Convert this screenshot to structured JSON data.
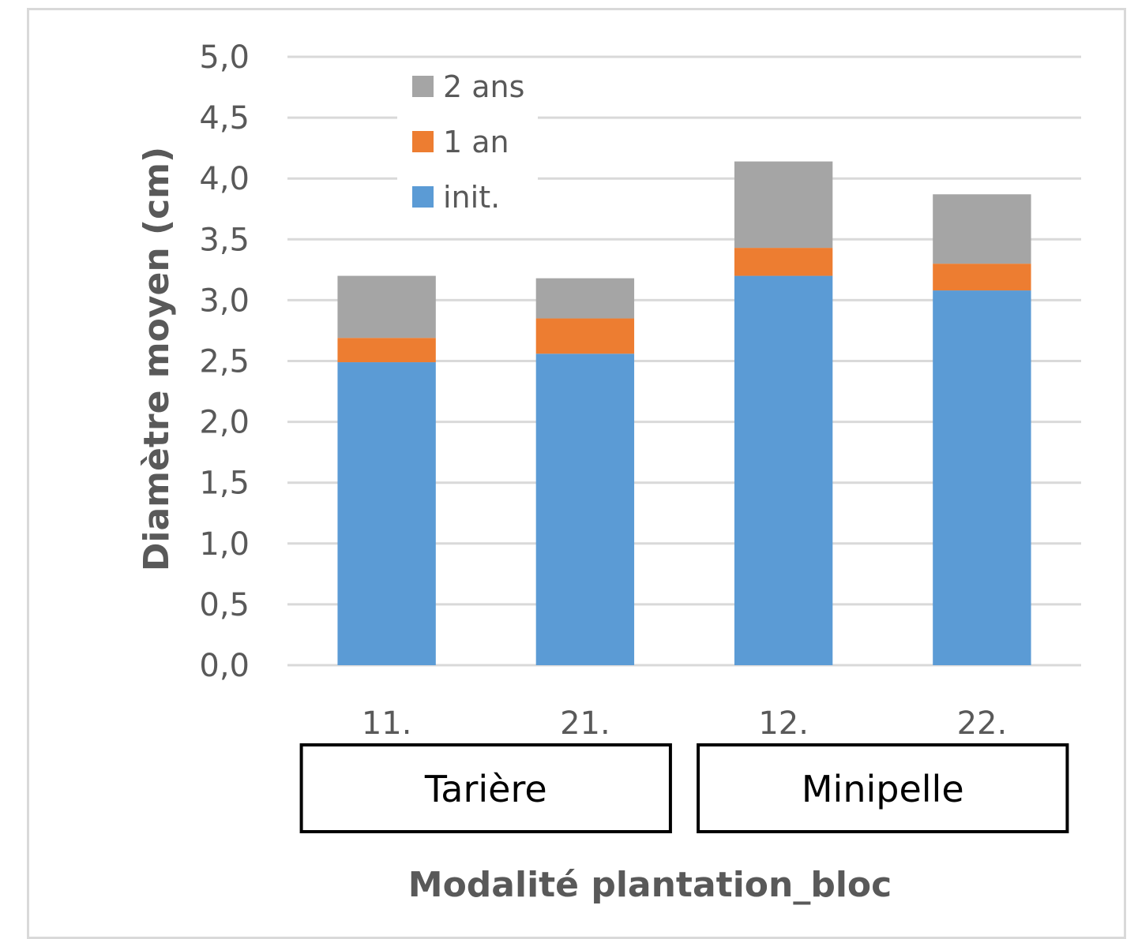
{
  "chart_data": {
    "type": "bar",
    "stacked": true,
    "categories": [
      "11.",
      "21.",
      "12.",
      "22."
    ],
    "groups": [
      {
        "label": "Tarière",
        "categories": [
          "11.",
          "21."
        ]
      },
      {
        "label": "Minipelle",
        "categories": [
          "12.",
          "22."
        ]
      }
    ],
    "series": [
      {
        "name": "init.",
        "color": "#5b9bd5",
        "values": [
          2.49,
          2.56,
          3.2,
          3.08
        ]
      },
      {
        "name": "1 an",
        "color": "#ed7d31",
        "values": [
          0.2,
          0.29,
          0.23,
          0.22
        ]
      },
      {
        "name": "2 ans",
        "color": "#a5a5a5",
        "values": [
          0.51,
          0.33,
          0.71,
          0.57
        ]
      }
    ],
    "xlabel": "Modalité plantation_bloc",
    "ylabel": "Diamètre moyen (cm)",
    "ylim": [
      0,
      5
    ],
    "yticks": [
      "0,0",
      "0,5",
      "1,0",
      "1,5",
      "2,0",
      "2,5",
      "3,0",
      "3,5",
      "4,0",
      "4,5",
      "5,0"
    ],
    "grid": true,
    "legend_position": "top-left",
    "legend_order": [
      "2 ans",
      "1 an",
      "init."
    ]
  }
}
